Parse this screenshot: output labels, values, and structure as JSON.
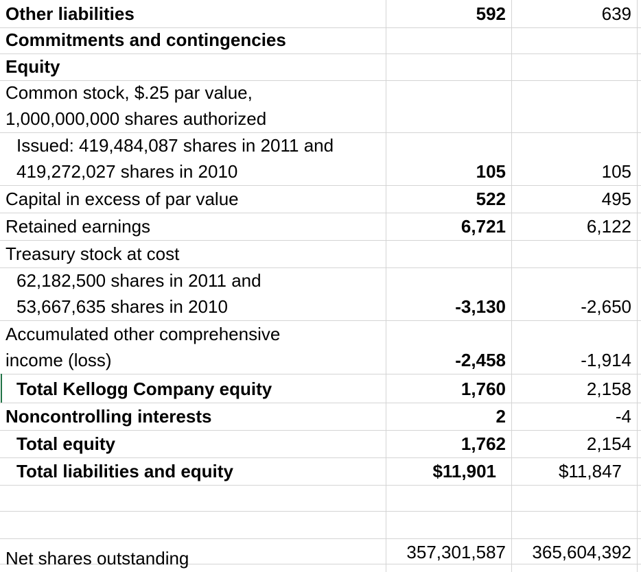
{
  "rows": [
    {
      "label": [
        "Other liabilities"
      ],
      "bold": true,
      "y2011": "592",
      "y2010": "639"
    },
    {
      "label": [
        "Commitments and contingencies"
      ],
      "bold": true
    },
    {
      "label": [
        "Equity"
      ],
      "bold": true
    },
    {
      "label": [
        "Common stock, $.25 par value,",
        "1,000,000,000 shares authorized"
      ]
    },
    {
      "label": [
        "Issued: 419,484,087 shares in 2011 and",
        "419,272,027 shares in 2010"
      ],
      "indent": true,
      "y2011": "105",
      "y2010": "105"
    },
    {
      "label": [
        "Capital in excess of par value"
      ],
      "y2011": "522",
      "y2010": "495"
    },
    {
      "label": [
        "Retained earnings"
      ],
      "y2011": "6,721",
      "y2010": "6,122"
    },
    {
      "label": [
        "Treasury stock at cost"
      ]
    },
    {
      "label": [
        "62,182,500 shares in 2011 and",
        "53,667,635 shares in 2010"
      ],
      "indent": true,
      "y2011": "-3,130",
      "y2010": "-2,650"
    },
    {
      "label": [
        "Accumulated other comprehensive",
        "income (loss)"
      ],
      "y2011": "-2,458",
      "y2010": "-1,914"
    },
    {
      "label": [
        "Total Kellogg Company equity"
      ],
      "bold": true,
      "indent": true,
      "y2011": "1,760",
      "y2010": "2,158"
    },
    {
      "label": [
        "Noncontrolling interests"
      ],
      "bold": true,
      "y2011": "2",
      "y2010": "-4"
    },
    {
      "label": [
        "Total equity"
      ],
      "bold": true,
      "indent": true,
      "y2011": "1,762",
      "y2010": "2,154"
    },
    {
      "label": [
        "Total liabilities and equity"
      ],
      "bold": true,
      "indent": true,
      "y2011": "$11,901",
      "y2010": "$11,847"
    },
    {
      "label": [
        "Net shares outstanding"
      ],
      "y2011": "357,301,587",
      "y2010": "365,604,392"
    }
  ]
}
